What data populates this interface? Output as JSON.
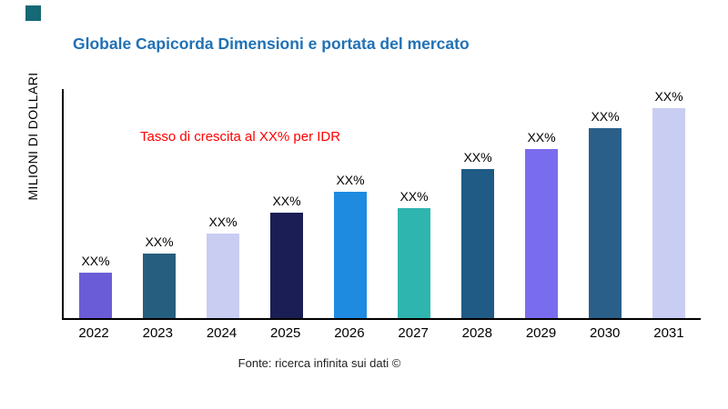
{
  "logo": {
    "color": "#156974"
  },
  "title": {
    "text": "Globale Capicorda Dimensioni e portata del mercato",
    "color": "#2171b5"
  },
  "annotation": {
    "text": "Tasso di crescita al XX% per IDR",
    "color": "#ff0000"
  },
  "source": {
    "text": "Fonte: ricerca infinita sui dati ©"
  },
  "chart_data": {
    "type": "bar",
    "title": "Globale Capicorda Dimensioni e portata del mercato",
    "ylabel": "MILIONI DI DOLLARI",
    "xlabel": "",
    "categories": [
      "2022",
      "2023",
      "2024",
      "2025",
      "2026",
      "2027",
      "2028",
      "2029",
      "2030",
      "2031"
    ],
    "values": [
      20,
      28,
      37,
      46,
      55,
      48,
      65,
      74,
      83,
      92
    ],
    "bar_labels": [
      "XX%",
      "XX%",
      "XX%",
      "XX%",
      "XX%",
      "XX%",
      "XX%",
      "XX%",
      "XX%",
      "XX%"
    ],
    "colors": [
      "#6A5CD6",
      "#255E7E",
      "#C9CDF2",
      "#1A1E55",
      "#1E8BE0",
      "#2EB5AF",
      "#1F5B85",
      "#7A6CEE",
      "#2A5F8A",
      "#C9CDF2"
    ],
    "ylim": [
      0,
      100
    ],
    "grid": false,
    "legend": false,
    "annotation": "Tasso di crescita al XX% per IDR",
    "note": "Values are unlabeled in source (shown as XX%); heights estimated on 0-100 relative scale"
  }
}
